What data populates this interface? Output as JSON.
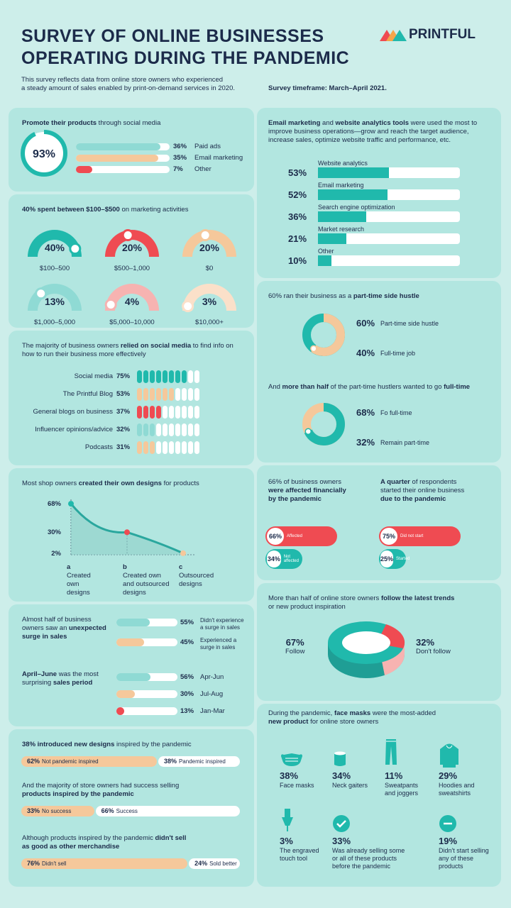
{
  "header": {
    "title_line1": "SURVEY OF ONLINE BUSINESSES",
    "title_line2": "OPERATING DURING THE PANDEMIC",
    "logo": "PRINTFUL",
    "intro_line1": "This survey reflects data from online store owners who experienced",
    "intro_line2": "a steady amount of sales enabled by print-on-demand services in 2020.",
    "timeframe": "Survey timeframe: March–April 2021."
  },
  "colors": {
    "teal": "#20b9ac",
    "light_teal": "#8fdad4",
    "peach": "#f5c89b",
    "red": "#ef4b52",
    "pink": "#f7b3b1",
    "navy": "#1c2b4a",
    "card": "#b2e6e0"
  },
  "promote": {
    "title_bold": "Promote their products",
    "title_rest": " through social media",
    "ring_value": "93%",
    "rows": [
      {
        "pct": "36%",
        "label": "Paid ads"
      },
      {
        "pct": "35%",
        "label": "Email marketing"
      },
      {
        "pct": "7%",
        "label": "Other"
      }
    ]
  },
  "spend": {
    "title_bold": "40% spent between $100–$500",
    "title_rest": " on marketing activities",
    "items": [
      {
        "pct": "40%",
        "label": "$100–500"
      },
      {
        "pct": "20%",
        "label": "$500–1,000"
      },
      {
        "pct": "20%",
        "label": "$0"
      },
      {
        "pct": "13%",
        "label": "$1,000–5,000"
      },
      {
        "pct": "4%",
        "label": "$5,000–10,000"
      },
      {
        "pct": "3%",
        "label": "$10,000+"
      }
    ]
  },
  "info": {
    "line1_pre": "The majority of business owners ",
    "line1_bold": "relied on social media",
    "line1_post": " to find info on",
    "line2": "how to run their business more effectively",
    "rows": [
      {
        "label": "Social media",
        "pct": "75%",
        "filled": 8
      },
      {
        "label": "The Printful Blog",
        "pct": "53%",
        "filled": 6
      },
      {
        "label": "General blogs on business",
        "pct": "37%",
        "filled": 4
      },
      {
        "label": "Influencer opinions/advice",
        "pct": "32%",
        "filled": 3
      },
      {
        "label": "Podcasts",
        "pct": "31%",
        "filled": 3
      }
    ]
  },
  "designs": {
    "title_pre": "Most shop owners ",
    "title_bold": "created their own designs",
    "title_post": " for products",
    "ticks": [
      "68%",
      "30%",
      "2%"
    ],
    "points": [
      {
        "letter": "a",
        "line1": "Created",
        "line2": "own",
        "line3": "designs"
      },
      {
        "letter": "b",
        "line1": "Created own",
        "line2": "and outsourced",
        "line3": "designs"
      },
      {
        "letter": "c",
        "line1": "Outsourced",
        "line2": "designs",
        "line3": ""
      }
    ]
  },
  "surge": {
    "q1_line1": "Almost half of business",
    "q1_line2_pre": "owners saw an ",
    "q1_line2_bold": "unexpected",
    "q1_line3": "surge in sales",
    "rows1": [
      {
        "pct": "55%",
        "l1": "Didn't experience",
        "l2": "a surge in sales"
      },
      {
        "pct": "45%",
        "l1": "Experienced a",
        "l2": "surge in sales"
      }
    ],
    "q2_line1_bold": "April–June",
    "q2_line1_rest": " was the most",
    "q2_line2_pre": "surprising ",
    "q2_line2_bold": "sales period",
    "rows2": [
      {
        "pct": "56%",
        "label": "Apr-Jun"
      },
      {
        "pct": "30%",
        "label": "Jul-Aug"
      },
      {
        "pct": "13%",
        "label": "Jan-Mar"
      }
    ]
  },
  "newdesigns": {
    "q1_bold": "38% introduced new designs",
    "q1_rest": " inspired by the pandemic",
    "b1": {
      "lp": "62%",
      "ll": "Not pandemic inspired",
      "rp": "38%",
      "rl": "Pandemic inspired"
    },
    "q2_line1": "And the majority of store owners had success selling",
    "q2_line2": "products inspired by the pandemic",
    "b2": {
      "lp": "33%",
      "ll": "No success",
      "rp": "66%",
      "rl": "Success"
    },
    "q3_line1_pre": "Although products inspired by the pandemic ",
    "q3_line1_bold": "didn't sell",
    "q3_line2": "as good as other merchandise",
    "b3": {
      "lp": "76%",
      "ll": "Didn't sell",
      "rp": "24%",
      "rl": "Sold better"
    }
  },
  "tools": {
    "line1_b1": "Email marketing",
    "line1_m": " and ",
    "line1_b2": "website analytics tools",
    "line1_r": " were used the most to",
    "line2": "improve business operations—grow and reach the target audience,",
    "line3": "increase sales, optimize website traffic and performance, etc.",
    "rows": [
      {
        "pct": "53%",
        "label": "Website analytics"
      },
      {
        "pct": "52%",
        "label": "Email marketing"
      },
      {
        "pct": "36%",
        "label": "Search engine optimization"
      },
      {
        "pct": "21%",
        "label": "Market research"
      },
      {
        "pct": "10%",
        "label": "Other"
      }
    ]
  },
  "hustle": {
    "q1_pre": "60% ran their business as a ",
    "q1_bold": "part-time side hustle",
    "r1": [
      {
        "pct": "60%",
        "label": "Part-time side hustle"
      },
      {
        "pct": "40%",
        "label": "Full-time job"
      }
    ],
    "q2_pre": "And ",
    "q2_bold1": "more than half",
    "q2_mid": " of the part-time hustlers wanted to go ",
    "q2_bold2": "full-time",
    "r2": [
      {
        "pct": "68%",
        "label": "Fo full-time"
      },
      {
        "pct": "32%",
        "label": "Remain part-time"
      }
    ]
  },
  "financial": {
    "l_line1": "66% of business owners",
    "l_line2": "were affected financially",
    "l_line3": "by the pandemic",
    "r_line1_bold": "A quarter",
    "r_line1_rest": " of respondents",
    "r_line2": "started their online business",
    "r_line3": "due to the pandemic",
    "l_bars": [
      {
        "pct": "66%",
        "label": "Affected"
      },
      {
        "pct": "34%",
        "label": "Not affected"
      }
    ],
    "r_bars": [
      {
        "pct": "75%",
        "label": "Did not start"
      },
      {
        "pct": "25%",
        "label": "Started"
      }
    ]
  },
  "trends": {
    "line1_pre": "More than half of online store owners ",
    "line1_bold": "follow the latest trends",
    "line2": "or new product inspiration",
    "left_pct": "67%",
    "left_label": "Follow",
    "right_pct": "32%",
    "right_label": "Don't follow"
  },
  "masks": {
    "line1_pre": "During the pandemic, ",
    "line1_bold": "face masks",
    "line1_rest": " were the most-added",
    "line2": "new product",
    "line2_rest": " for online store owners",
    "items": [
      {
        "icon": "face-mask-icon",
        "pct": "38%",
        "l1": "Face masks",
        "l2": "",
        "l3": ""
      },
      {
        "icon": "neck-gaiter-icon",
        "pct": "34%",
        "l1": "Neck gaiters",
        "l2": "",
        "l3": ""
      },
      {
        "icon": "sweatpants-icon",
        "pct": "11%",
        "l1": "Sweatpants",
        "l2": "and joggers",
        "l3": ""
      },
      {
        "icon": "hoodie-icon",
        "pct": "29%",
        "l1": "Hoodies and",
        "l2": "sweatshirts",
        "l3": ""
      },
      {
        "icon": "engraved-touch-tool-icon",
        "pct": "3%",
        "l1": "The engraved",
        "l2": "touch tool",
        "l3": ""
      },
      {
        "icon": "check-icon",
        "pct": "33%",
        "l1": "Was already selling some",
        "l2": "or all of these products",
        "l3": "before the pandemic"
      },
      {
        "icon": "minus-icon",
        "pct": "19%",
        "l1": "Didn't start selling",
        "l2": "any of these",
        "l3": "products"
      }
    ]
  },
  "chart_data": [
    {
      "type": "bar",
      "title": "Promote their products through social media",
      "categories": [
        "Paid ads",
        "Email marketing",
        "Other"
      ],
      "values": [
        36,
        35,
        7
      ],
      "total": 93
    },
    {
      "type": "pie",
      "title": "40% spent between $100–$500 on marketing activities",
      "categories": [
        "$100–500",
        "$500–1,000",
        "$0",
        "$1,000–5,000",
        "$5,000–10,000",
        "$10,000+"
      ],
      "values": [
        40,
        20,
        20,
        13,
        4,
        3
      ]
    },
    {
      "type": "bar",
      "categories": [
        "Social media",
        "The Printful Blog",
        "General blogs on business",
        "Influencer opinions/advice",
        "Podcasts"
      ],
      "values": [
        75,
        53,
        37,
        32,
        31
      ]
    },
    {
      "type": "line",
      "title": "Most shop owners created their own designs for products",
      "categories": [
        "Created own designs",
        "Created own and outsourced designs",
        "Outsourced designs"
      ],
      "values": [
        68,
        30,
        2
      ]
    },
    {
      "type": "bar",
      "categories": [
        "Didn't experience a surge in sales",
        "Experienced a surge in sales"
      ],
      "values": [
        55,
        45
      ]
    },
    {
      "type": "bar",
      "categories": [
        "Apr-Jun",
        "Jul-Aug",
        "Jan-Mar"
      ],
      "values": [
        56,
        30,
        13
      ]
    },
    {
      "type": "bar",
      "categories": [
        "Not pandemic inspired",
        "Pandemic inspired"
      ],
      "values": [
        62,
        38
      ]
    },
    {
      "type": "bar",
      "categories": [
        "No success",
        "Success"
      ],
      "values": [
        33,
        66
      ]
    },
    {
      "type": "bar",
      "categories": [
        "Didn't sell",
        "Sold better"
      ],
      "values": [
        76,
        24
      ]
    },
    {
      "type": "bar",
      "categories": [
        "Website analytics",
        "Email marketing",
        "Search engine optimization",
        "Market research",
        "Other"
      ],
      "values": [
        53,
        52,
        36,
        21,
        10
      ]
    },
    {
      "type": "pie",
      "categories": [
        "Part-time side hustle",
        "Full-time job"
      ],
      "values": [
        60,
        40
      ]
    },
    {
      "type": "pie",
      "categories": [
        "Fo full-time",
        "Remain part-time"
      ],
      "values": [
        68,
        32
      ]
    },
    {
      "type": "bar",
      "categories": [
        "Affected",
        "Not affected"
      ],
      "values": [
        66,
        34
      ]
    },
    {
      "type": "bar",
      "categories": [
        "Did not start",
        "Started"
      ],
      "values": [
        75,
        25
      ]
    },
    {
      "type": "pie",
      "categories": [
        "Follow",
        "Don't follow"
      ],
      "values": [
        67,
        32
      ]
    },
    {
      "type": "bar",
      "categories": [
        "Face masks",
        "Neck gaiters",
        "Sweatpants and joggers",
        "Hoodies and sweatshirts",
        "The engraved touch tool",
        "Was already selling some or all of these products before the pandemic",
        "Didn't start selling any of these products"
      ],
      "values": [
        38,
        34,
        11,
        29,
        3,
        33,
        19
      ]
    }
  ]
}
